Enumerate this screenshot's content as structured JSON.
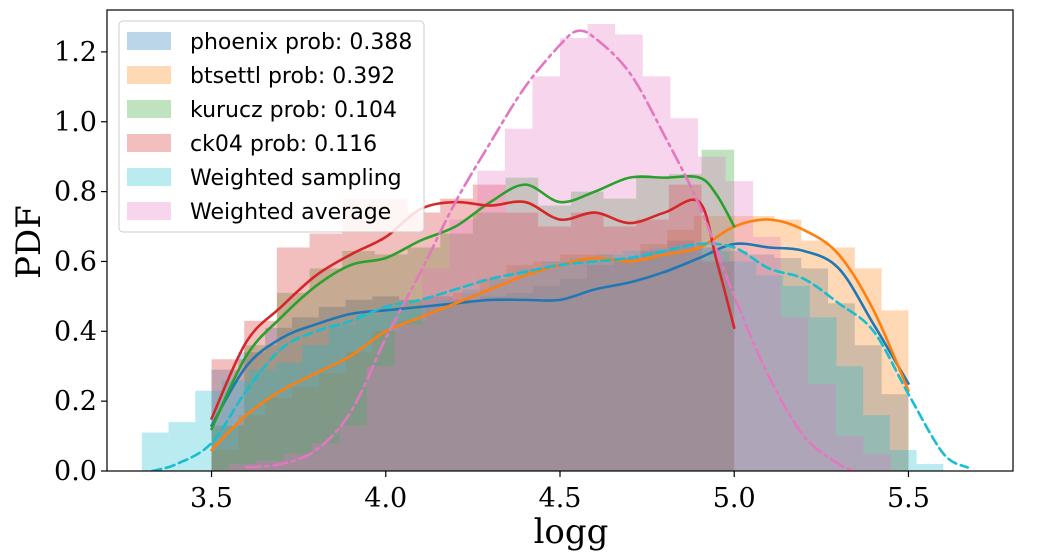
{
  "chart_data": {
    "type": "histogram+kde",
    "xlabel": "logg",
    "ylabel": "PDF",
    "xlim": [
      3.2,
      5.8
    ],
    "ylim": [
      0.0,
      1.32
    ],
    "xticks": [
      3.5,
      4.0,
      4.5,
      5.0,
      5.5
    ],
    "xtick_labels": [
      "3.5",
      "4.0",
      "4.5",
      "5.0",
      "5.5"
    ],
    "yticks": [
      0.0,
      0.2,
      0.4,
      0.6,
      0.8,
      1.0,
      1.2
    ],
    "ytick_labels": [
      "0.0",
      "0.2",
      "0.4",
      "0.6",
      "0.8",
      "1.0",
      "1.2"
    ],
    "legend_position": "top-left",
    "series": [
      {
        "name": "phoenix prob: 0.388",
        "color": "#1f77b4",
        "hist_edges": [
          3.5,
          5.5
        ],
        "hist_values": [
          0.29,
          0.34,
          0.41,
          0.44,
          0.47,
          0.49,
          0.5,
          0.49,
          0.5,
          0.49,
          0.5,
          0.51,
          0.53,
          0.55,
          0.59,
          0.61,
          0.63,
          0.66,
          0.64,
          0.63,
          0.62,
          0.61,
          0.58,
          0.48,
          0.36,
          0.22
        ],
        "kde_x": [
          3.5,
          3.6,
          3.7,
          3.8,
          3.9,
          4.0,
          4.1,
          4.2,
          4.3,
          4.4,
          4.5,
          4.6,
          4.7,
          4.8,
          4.9,
          5.0,
          5.1,
          5.2,
          5.3,
          5.4,
          5.5
        ],
        "kde_y": [
          0.13,
          0.3,
          0.38,
          0.42,
          0.45,
          0.46,
          0.47,
          0.48,
          0.49,
          0.49,
          0.49,
          0.52,
          0.54,
          0.57,
          0.61,
          0.65,
          0.64,
          0.63,
          0.58,
          0.42,
          0.25
        ]
      },
      {
        "name": "btsettl prob: 0.392",
        "color": "#ff7f0e",
        "hist_edges": [
          3.5,
          5.5
        ],
        "hist_values": [
          0.06,
          0.16,
          0.21,
          0.24,
          0.28,
          0.34,
          0.4,
          0.43,
          0.47,
          0.51,
          0.55,
          0.59,
          0.6,
          0.62,
          0.62,
          0.61,
          0.65,
          0.69,
          0.73,
          0.73,
          0.73,
          0.72,
          0.66,
          0.64,
          0.58,
          0.46
        ],
        "kde_x": [
          3.5,
          3.6,
          3.7,
          3.8,
          3.9,
          4.0,
          4.1,
          4.2,
          4.3,
          4.4,
          4.5,
          4.6,
          4.7,
          4.8,
          4.9,
          5.0,
          5.1,
          5.2,
          5.3,
          5.4,
          5.5
        ],
        "kde_y": [
          0.06,
          0.16,
          0.23,
          0.28,
          0.33,
          0.4,
          0.44,
          0.48,
          0.52,
          0.56,
          0.59,
          0.61,
          0.6,
          0.62,
          0.64,
          0.7,
          0.72,
          0.69,
          0.62,
          0.46,
          0.23
        ]
      },
      {
        "name": "kurucz prob: 0.104",
        "color": "#2ca02c",
        "hist_edges": [
          3.5,
          5.0
        ],
        "hist_values": [
          0.13,
          0.36,
          0.51,
          0.58,
          0.63,
          0.62,
          0.64,
          0.68,
          0.74,
          0.84,
          0.76,
          0.8,
          0.78,
          0.84,
          0.85,
          0.92
        ],
        "kde_x": [
          3.5,
          3.6,
          3.7,
          3.8,
          3.9,
          4.0,
          4.1,
          4.2,
          4.3,
          4.4,
          4.5,
          4.6,
          4.7,
          4.8,
          4.9,
          4.95,
          5.0
        ],
        "kde_y": [
          0.12,
          0.33,
          0.44,
          0.53,
          0.59,
          0.61,
          0.66,
          0.7,
          0.77,
          0.82,
          0.77,
          0.8,
          0.84,
          0.84,
          0.84,
          0.79,
          0.7
        ]
      },
      {
        "name": "ck04 prob: 0.116",
        "color": "#d62728",
        "hist_edges": [
          3.5,
          5.0
        ],
        "hist_values": [
          0.32,
          0.43,
          0.64,
          0.68,
          0.78,
          0.78,
          0.74,
          0.78,
          0.82,
          0.74,
          0.7,
          0.74,
          0.7,
          0.72,
          0.82,
          0.6
        ],
        "kde_x": [
          3.5,
          3.6,
          3.7,
          3.8,
          3.9,
          4.0,
          4.1,
          4.2,
          4.3,
          4.4,
          4.5,
          4.6,
          4.7,
          4.8,
          4.9,
          4.95,
          5.0
        ],
        "kde_y": [
          0.15,
          0.37,
          0.47,
          0.56,
          0.62,
          0.67,
          0.75,
          0.77,
          0.76,
          0.77,
          0.72,
          0.74,
          0.71,
          0.74,
          0.77,
          0.6,
          0.41
        ]
      },
      {
        "name": "Weighted sampling",
        "color": "#17becf",
        "hist_edges": [
          3.3,
          5.6
        ],
        "hist_values": [
          0.11,
          0.14,
          0.23,
          0.26,
          0.29,
          0.31,
          0.36,
          0.42,
          0.45,
          0.47,
          0.47,
          0.49,
          0.52,
          0.55,
          0.58,
          0.6,
          0.61,
          0.62,
          0.63,
          0.64,
          0.65,
          0.64,
          0.6,
          0.56,
          0.53,
          0.44,
          0.3,
          0.16,
          0.06,
          0.02
        ],
        "kde_x": [
          3.33,
          3.4,
          3.5,
          3.6,
          3.7,
          3.8,
          3.9,
          4.0,
          4.1,
          4.2,
          4.3,
          4.4,
          4.5,
          4.6,
          4.7,
          4.8,
          4.9,
          5.0,
          5.1,
          5.2,
          5.3,
          5.4,
          5.5,
          5.6,
          5.67
        ],
        "kde_y": [
          0.0,
          0.02,
          0.08,
          0.23,
          0.35,
          0.4,
          0.43,
          0.47,
          0.49,
          0.52,
          0.55,
          0.57,
          0.59,
          0.6,
          0.61,
          0.63,
          0.65,
          0.64,
          0.58,
          0.55,
          0.48,
          0.4,
          0.22,
          0.05,
          0.01
        ]
      },
      {
        "name": "Weighted average",
        "color": "#e377c2",
        "hist_edges": [
          3.55,
          5.45
        ],
        "hist_values": [
          0.02,
          0.03,
          0.05,
          0.08,
          0.13,
          0.3,
          0.42,
          0.58,
          0.72,
          0.86,
          0.98,
          1.13,
          1.24,
          1.28,
          1.25,
          1.13,
          1.01,
          0.9,
          0.83,
          0.67,
          0.44,
          0.25,
          0.1,
          0.05
        ],
        "kde_x": [
          3.6,
          3.7,
          3.8,
          3.9,
          4.0,
          4.1,
          4.2,
          4.3,
          4.4,
          4.5,
          4.55,
          4.6,
          4.7,
          4.8,
          4.9,
          5.0,
          5.1,
          5.2,
          5.3,
          5.35
        ],
        "kde_y": [
          0.01,
          0.02,
          0.06,
          0.17,
          0.38,
          0.57,
          0.77,
          0.94,
          1.1,
          1.22,
          1.26,
          1.24,
          1.14,
          0.96,
          0.76,
          0.5,
          0.27,
          0.1,
          0.02,
          0.0
        ]
      }
    ]
  }
}
